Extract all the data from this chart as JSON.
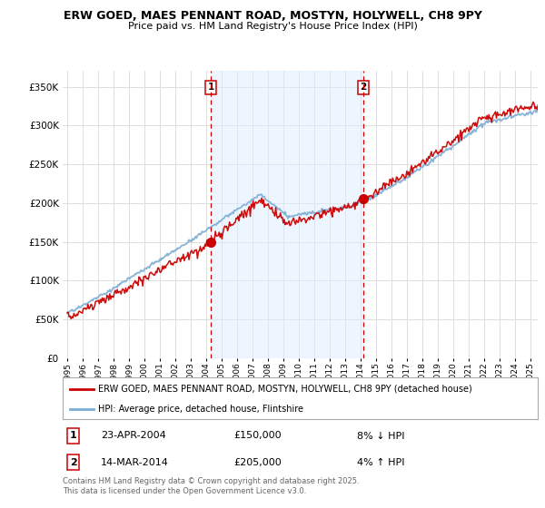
{
  "title": "ERW GOED, MAES PENNANT ROAD, MOSTYN, HOLYWELL, CH8 9PY",
  "subtitle": "Price paid vs. HM Land Registry's House Price Index (HPI)",
  "legend_label_red": "ERW GOED, MAES PENNANT ROAD, MOSTYN, HOLYWELL, CH8 9PY (detached house)",
  "legend_label_blue": "HPI: Average price, detached house, Flintshire",
  "transaction1_date": "23-APR-2004",
  "transaction1_price": "£150,000",
  "transaction1_note": "8% ↓ HPI",
  "transaction2_date": "14-MAR-2014",
  "transaction2_price": "£205,000",
  "transaction2_note": "4% ↑ HPI",
  "footer": "Contains HM Land Registry data © Crown copyright and database right 2025.\nThis data is licensed under the Open Government Licence v3.0.",
  "ylim": [
    0,
    370000
  ],
  "yticks": [
    0,
    50000,
    100000,
    150000,
    200000,
    250000,
    300000,
    350000
  ],
  "color_red": "#cc0000",
  "color_blue": "#7aadd4",
  "color_blue_fill": "#ddeeff",
  "color_vline": "#cc0000",
  "bg_color": "#ffffff",
  "grid_color": "#dddddd",
  "transaction1_x_year": 2004.31,
  "transaction1_y": 150000,
  "transaction2_x_year": 2014.2,
  "transaction2_y": 205000,
  "xmin": 1995.0,
  "xmax": 2025.5
}
